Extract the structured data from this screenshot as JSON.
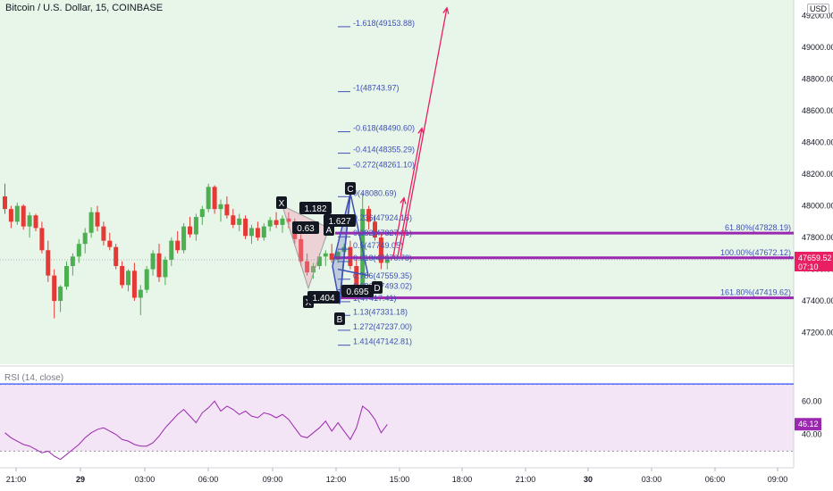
{
  "header": {
    "title": "Bitcoin / U.S. Dollar, 15, COINBASE",
    "currency": "USD"
  },
  "colors": {
    "up": "#26a69a",
    "down": "#ef5350",
    "up_fill": "#4caf50",
    "down_fill": "#e53935",
    "background_price": "#e8f5e9",
    "background_rsi": "#f3e5f5",
    "fib_line": "#9c27b0",
    "arrow": "#e91e63",
    "pattern_blue": "#3f51b5",
    "rsi_line": "#9c27b0",
    "rsi_upper": "#536dfe"
  },
  "chart_data": [
    {
      "type": "candlestick",
      "x_axis": {
        "tick_labels": [
          "21:00",
          "29",
          "03:00",
          "06:00",
          "09:00",
          "12:00",
          "15:00",
          "18:00",
          "21:00",
          "30",
          "03:00",
          "06:00",
          "09:00"
        ]
      },
      "y_axis": {
        "tick_labels": [
          "47200.00",
          "47400.00",
          "47600.00",
          "47800.00",
          "48000.00",
          "48200.00",
          "48400.00",
          "48600.00",
          "48800.00",
          "49000.00",
          "49200.00"
        ],
        "ylim": [
          47000,
          49300
        ]
      },
      "last_price": {
        "value": "47659.52",
        "countdown": "07:10"
      },
      "candles": [
        {
          "o": 48060,
          "h": 48140,
          "l": 47950,
          "c": 47980
        },
        {
          "o": 47980,
          "h": 48000,
          "l": 47860,
          "c": 47900
        },
        {
          "o": 47900,
          "h": 48020,
          "l": 47880,
          "c": 48000
        },
        {
          "o": 48000,
          "h": 48010,
          "l": 47850,
          "c": 47870
        },
        {
          "o": 47870,
          "h": 47960,
          "l": 47800,
          "c": 47940
        },
        {
          "o": 47940,
          "h": 47950,
          "l": 47840,
          "c": 47860
        },
        {
          "o": 47860,
          "h": 47900,
          "l": 47700,
          "c": 47720
        },
        {
          "o": 47720,
          "h": 47780,
          "l": 47520,
          "c": 47560
        },
        {
          "o": 47560,
          "h": 47600,
          "l": 47290,
          "c": 47400
        },
        {
          "o": 47400,
          "h": 47500,
          "l": 47330,
          "c": 47490
        },
        {
          "o": 47490,
          "h": 47650,
          "l": 47470,
          "c": 47620
        },
        {
          "o": 47620,
          "h": 47700,
          "l": 47560,
          "c": 47680
        },
        {
          "o": 47680,
          "h": 47790,
          "l": 47640,
          "c": 47760
        },
        {
          "o": 47760,
          "h": 47860,
          "l": 47700,
          "c": 47830
        },
        {
          "o": 47830,
          "h": 47990,
          "l": 47800,
          "c": 47960
        },
        {
          "o": 47960,
          "h": 48000,
          "l": 47840,
          "c": 47870
        },
        {
          "o": 47870,
          "h": 47900,
          "l": 47750,
          "c": 47780
        },
        {
          "o": 47780,
          "h": 47830,
          "l": 47720,
          "c": 47740
        },
        {
          "o": 47740,
          "h": 47760,
          "l": 47600,
          "c": 47620
        },
        {
          "o": 47620,
          "h": 47650,
          "l": 47480,
          "c": 47500
        },
        {
          "o": 47500,
          "h": 47600,
          "l": 47460,
          "c": 47590
        },
        {
          "o": 47590,
          "h": 47640,
          "l": 47400,
          "c": 47420
        },
        {
          "o": 47420,
          "h": 47500,
          "l": 47310,
          "c": 47470
        },
        {
          "o": 47470,
          "h": 47620,
          "l": 47450,
          "c": 47600
        },
        {
          "o": 47600,
          "h": 47720,
          "l": 47560,
          "c": 47700
        },
        {
          "o": 47700,
          "h": 47760,
          "l": 47520,
          "c": 47550
        },
        {
          "o": 47550,
          "h": 47680,
          "l": 47500,
          "c": 47660
        },
        {
          "o": 47660,
          "h": 47800,
          "l": 47620,
          "c": 47780
        },
        {
          "o": 47780,
          "h": 47840,
          "l": 47700,
          "c": 47720
        },
        {
          "o": 47720,
          "h": 47890,
          "l": 47700,
          "c": 47870
        },
        {
          "o": 47870,
          "h": 47930,
          "l": 47800,
          "c": 47820
        },
        {
          "o": 47820,
          "h": 47950,
          "l": 47780,
          "c": 47930
        },
        {
          "o": 47930,
          "h": 48000,
          "l": 47880,
          "c": 47980
        },
        {
          "o": 47980,
          "h": 48140,
          "l": 47960,
          "c": 48120
        },
        {
          "o": 48120,
          "h": 48130,
          "l": 47950,
          "c": 47980
        },
        {
          "o": 47980,
          "h": 48040,
          "l": 47900,
          "c": 48010
        },
        {
          "o": 48010,
          "h": 48060,
          "l": 47920,
          "c": 47940
        },
        {
          "o": 47940,
          "h": 47980,
          "l": 47860,
          "c": 47880
        },
        {
          "o": 47880,
          "h": 47950,
          "l": 47840,
          "c": 47920
        },
        {
          "o": 47920,
          "h": 47940,
          "l": 47790,
          "c": 47810
        },
        {
          "o": 47810,
          "h": 47880,
          "l": 47760,
          "c": 47860
        },
        {
          "o": 47860,
          "h": 47900,
          "l": 47780,
          "c": 47800
        },
        {
          "o": 47800,
          "h": 47890,
          "l": 47780,
          "c": 47870
        },
        {
          "o": 47870,
          "h": 47930,
          "l": 47840,
          "c": 47910
        },
        {
          "o": 47910,
          "h": 47960,
          "l": 47860,
          "c": 47880
        },
        {
          "o": 47880,
          "h": 47940,
          "l": 47830,
          "c": 47920
        },
        {
          "o": 47920,
          "h": 47960,
          "l": 47860,
          "c": 47900
        },
        {
          "o": 47900,
          "h": 47920,
          "l": 47760,
          "c": 47790
        },
        {
          "o": 47790,
          "h": 47820,
          "l": 47620,
          "c": 47650
        },
        {
          "o": 47650,
          "h": 47700,
          "l": 47560,
          "c": 47580
        },
        {
          "o": 47580,
          "h": 47640,
          "l": 47540,
          "c": 47620
        },
        {
          "o": 47620,
          "h": 47700,
          "l": 47600,
          "c": 47680
        },
        {
          "o": 47680,
          "h": 47720,
          "l": 47620,
          "c": 47700
        },
        {
          "o": 47700,
          "h": 47760,
          "l": 47640,
          "c": 47660
        },
        {
          "o": 47660,
          "h": 47720,
          "l": 47640,
          "c": 47710
        },
        {
          "o": 47710,
          "h": 47760,
          "l": 47660,
          "c": 47740
        },
        {
          "o": 47740,
          "h": 47780,
          "l": 47600,
          "c": 47620
        },
        {
          "o": 47620,
          "h": 47680,
          "l": 47440,
          "c": 47480
        },
        {
          "o": 47480,
          "h": 48080,
          "l": 47420,
          "c": 47980
        },
        {
          "o": 47980,
          "h": 48000,
          "l": 47850,
          "c": 47900
        },
        {
          "o": 47900,
          "h": 47940,
          "l": 47780,
          "c": 47800
        },
        {
          "o": 47800,
          "h": 47820,
          "l": 47600,
          "c": 47640
        },
        {
          "o": 47640,
          "h": 47700,
          "l": 47600,
          "c": 47660
        }
      ],
      "pattern_labels": [
        "X",
        "X",
        "1.182",
        "0.63",
        "A",
        "1.404",
        "1.627",
        "B",
        "C",
        "D",
        "0.695"
      ],
      "fib_labels": [
        "-1.618(49153.88)",
        "-1(48743.97)",
        "-0.618(48490.60)",
        "-0.414(48355.29)",
        "-0.272(48261.10)",
        "0(48080.69)",
        "0.236(47924.16)",
        "0.382(47827.31)",
        "0.5(47749.05)",
        "0.618(47670.78)",
        "0.786(47559.35)",
        "0.886(47493.02)",
        "1(47417.41)",
        "1.13(47331.18)",
        "1.272(47237.00)",
        "1.414(47142.81)"
      ],
      "fib_levels": [
        {
          "label": "61.80%(47828.19)",
          "value": 47828.19
        },
        {
          "label": "100.00%(47672.12)",
          "value": 47672.12
        },
        {
          "label": "161.80%(47419.62)",
          "value": 47419.62
        }
      ]
    },
    {
      "type": "line",
      "title": "RSI (14, close)",
      "y_axis": {
        "tick_labels": [
          "40.00",
          "60.00"
        ],
        "ylim": [
          20,
          80
        ]
      },
      "upper_band": 70,
      "lower_band": 30,
      "last_value": "46.12",
      "values": [
        41,
        38,
        36,
        34,
        33,
        31,
        29,
        30,
        27,
        25,
        28,
        31,
        34,
        38,
        41,
        43,
        44,
        42,
        40,
        37,
        36,
        34,
        33,
        33,
        35,
        39,
        44,
        48,
        52,
        55,
        51,
        47,
        53,
        56,
        60,
        54,
        57,
        55,
        52,
        54,
        51,
        50,
        53,
        52,
        50,
        52,
        49,
        44,
        39,
        38,
        41,
        44,
        48,
        42,
        47,
        42,
        37,
        44,
        57,
        54,
        49,
        41,
        46
      ]
    }
  ]
}
